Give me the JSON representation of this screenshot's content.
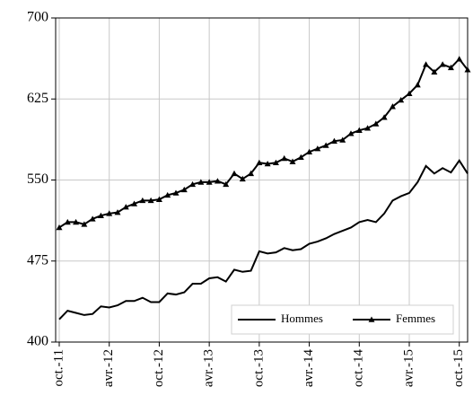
{
  "chart_data": {
    "type": "line",
    "categories": [
      "oct.-11",
      null,
      null,
      null,
      null,
      null,
      "avr.-12",
      null,
      null,
      null,
      null,
      null,
      "oct.-12",
      null,
      null,
      null,
      null,
      null,
      "avr.-13",
      null,
      null,
      null,
      null,
      null,
      "oct.-13",
      null,
      null,
      null,
      null,
      null,
      "avr.-14",
      null,
      null,
      null,
      null,
      null,
      "oct.-14",
      null,
      null,
      null,
      null,
      null,
      "avr.-15",
      null,
      null,
      null,
      null,
      null,
      "oct.-15",
      null
    ],
    "series": [
      {
        "name": "Hommes",
        "color": "#000000",
        "marker": "none",
        "values": [
          421,
          429,
          427,
          425,
          426,
          433,
          432,
          434,
          438,
          438,
          441,
          437,
          437,
          445,
          444,
          446,
          454,
          454,
          459,
          460,
          456,
          467,
          465,
          466,
          484,
          482,
          483,
          487,
          485,
          486,
          491,
          493,
          496,
          500,
          503,
          506,
          511,
          513,
          511,
          519,
          531,
          535,
          538,
          548,
          563,
          556,
          561,
          557,
          568,
          556
        ]
      },
      {
        "name": "Femmes",
        "color": "#000000",
        "marker": "triangle",
        "values": [
          506,
          511,
          511,
          509,
          514,
          517,
          519,
          520,
          525,
          528,
          531,
          531,
          532,
          536,
          538,
          541,
          546,
          548,
          548,
          549,
          546,
          556,
          551,
          556,
          566,
          565,
          566,
          570,
          567,
          571,
          576,
          579,
          582,
          586,
          587,
          593,
          596,
          598,
          602,
          608,
          618,
          624,
          630,
          638,
          657,
          650,
          657,
          654,
          662,
          652
        ]
      }
    ],
    "ylim": [
      400,
      700
    ],
    "yticks": [
      400,
      475,
      550,
      625,
      700
    ],
    "grid": true,
    "legend": "lower right"
  }
}
